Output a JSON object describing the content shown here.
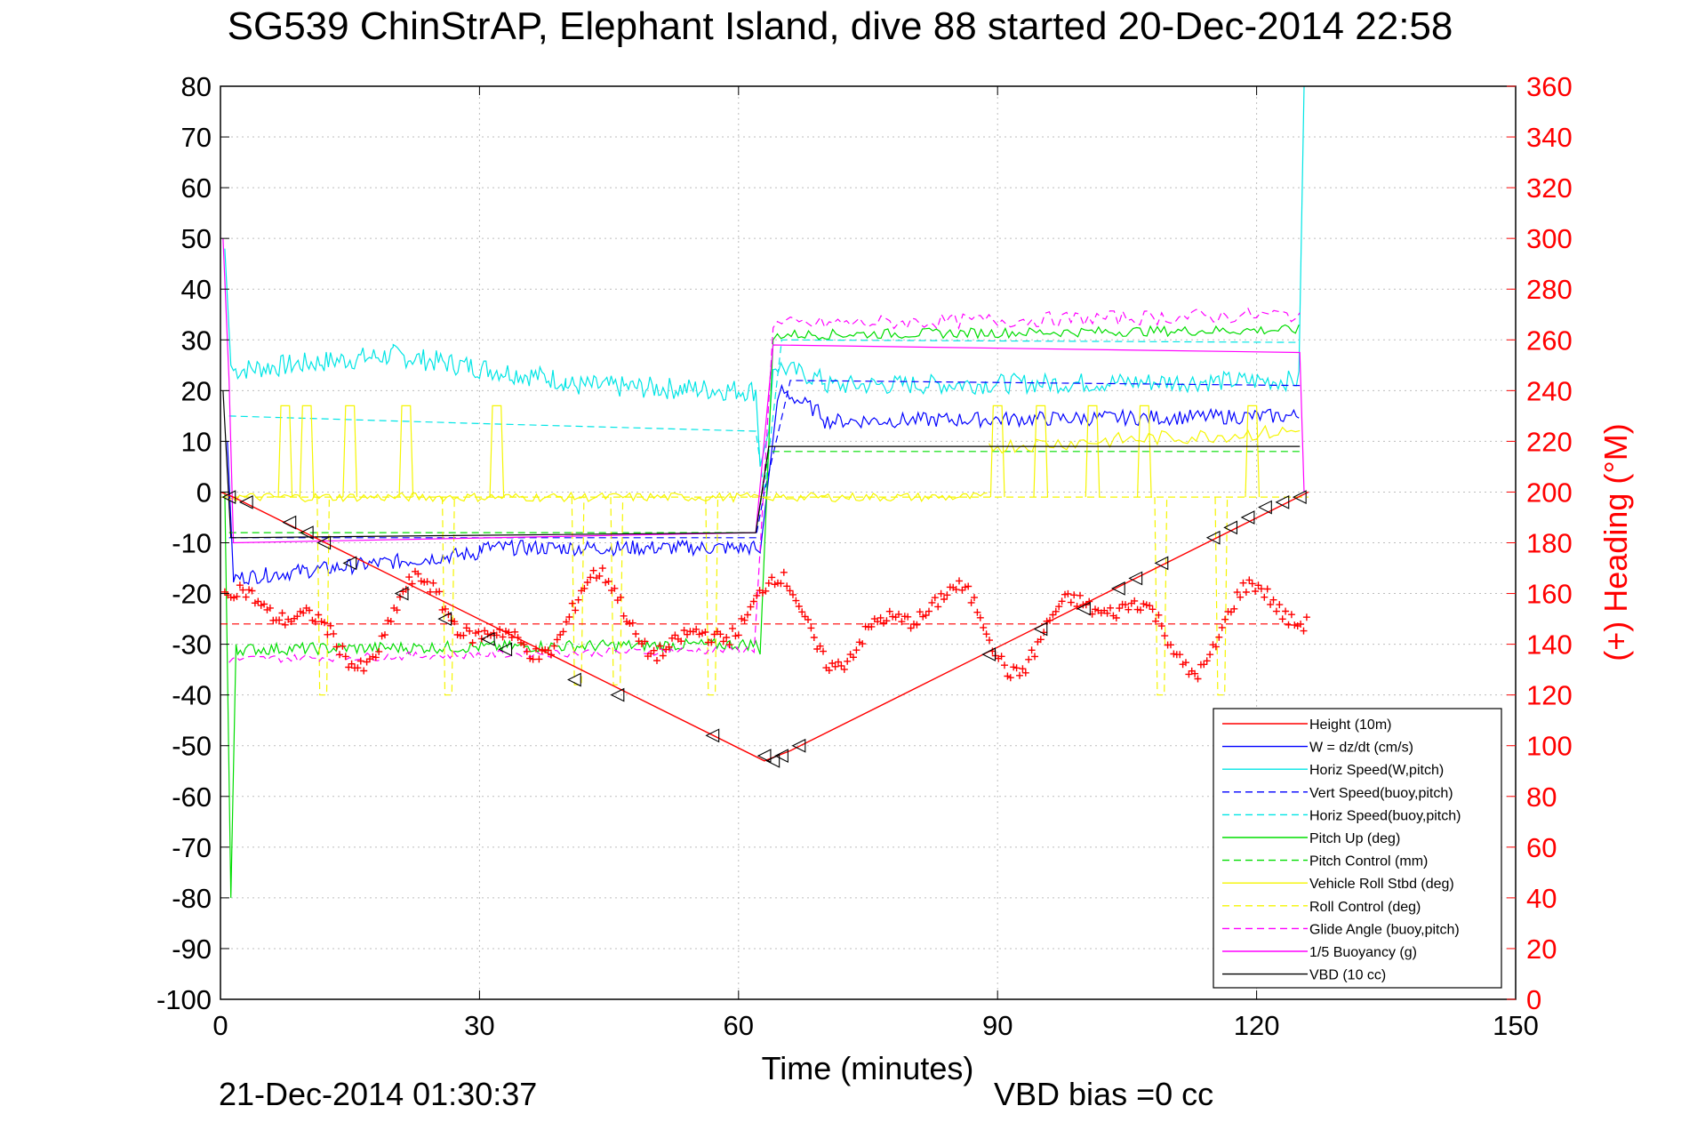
{
  "chart_data": {
    "type": "line",
    "title": "SG539 ChinStrAP, Elephant Island, dive 88 started 20-Dec-2014 22:58",
    "xlabel": "Time (minutes)",
    "ylabel_right": "(+) Heading (°M)",
    "footer_left": "21-Dec-2014 01:30:37",
    "footer_right": "VBD bias =0 cc",
    "xlim": [
      0,
      150
    ],
    "ylim_left": [
      -100,
      80
    ],
    "ylim_right": [
      0,
      360
    ],
    "x_ticks": [
      0,
      30,
      60,
      90,
      120,
      150
    ],
    "y_ticks_left": [
      80,
      70,
      60,
      50,
      40,
      30,
      20,
      10,
      0,
      -10,
      -20,
      -30,
      -40,
      -50,
      -60,
      -70,
      -80,
      -90,
      -100
    ],
    "y_ticks_right": [
      360,
      340,
      320,
      300,
      280,
      260,
      240,
      220,
      200,
      180,
      160,
      140,
      120,
      100,
      80,
      60,
      40,
      20,
      0
    ],
    "grid": true,
    "legend_position": "bottom-right",
    "legend": [
      {
        "label": "Height (10m)",
        "color": "#ff0000",
        "style": "solid"
      },
      {
        "label": "W = dz/dt (cm/s)",
        "color": "#0000ff",
        "style": "solid"
      },
      {
        "label": "Horiz Speed(W,pitch)",
        "color": "#00e5e5",
        "style": "solid"
      },
      {
        "label": "Vert Speed(buoy,pitch)",
        "color": "#0000ff",
        "style": "dashed"
      },
      {
        "label": "Horiz Speed(buoy,pitch)",
        "color": "#00e5e5",
        "style": "dashed"
      },
      {
        "label": "Pitch Up (deg)",
        "color": "#00dd00",
        "style": "solid"
      },
      {
        "label": "Pitch Control (mm)",
        "color": "#00dd00",
        "style": "dashed"
      },
      {
        "label": "Vehicle Roll Stbd (deg)",
        "color": "#f5f500",
        "style": "solid"
      },
      {
        "label": "Roll Control (deg)",
        "color": "#f5f500",
        "style": "dashed"
      },
      {
        "label": "Glide Angle (buoy,pitch)",
        "color": "#ff00ff",
        "style": "dashed"
      },
      {
        "label": "1/5 Buoyancy (g)",
        "color": "#ff00ff",
        "style": "solid"
      },
      {
        "label": "VBD (10 cc)",
        "color": "#000000",
        "style": "solid"
      }
    ],
    "series": [
      {
        "name": "Height (10m)",
        "axis": "left",
        "color": "#ff0000",
        "x": [
          0,
          1.5,
          63,
          66,
          126
        ],
        "y": [
          0,
          -1,
          -53,
          -51,
          0
        ]
      },
      {
        "name": "Roll Control (deg)",
        "axis": "left",
        "color": "#f5f500",
        "style": "dashed",
        "x": [
          0,
          126
        ],
        "y": [
          -1,
          -1
        ]
      }
    ],
    "heading": {
      "name": "(+) Heading (°M)",
      "axis": "right",
      "color": "#ff0000",
      "reference": 148
    },
    "height_markers": {
      "x": [
        1,
        3,
        8,
        10,
        12,
        15,
        21,
        26,
        31,
        33,
        41,
        46,
        57,
        63,
        64,
        65,
        67,
        89,
        95,
        100,
        104,
        106,
        109,
        115,
        117,
        119,
        121,
        123,
        125
      ],
      "y": [
        -1,
        -2,
        -6,
        -8,
        -10,
        -14,
        -20,
        -25,
        -29,
        -31,
        -37,
        -40,
        -48,
        -52,
        -53,
        -52,
        -50,
        -32,
        -27,
        -23,
        -19,
        -17,
        -14,
        -9,
        -7,
        -5,
        -3,
        -2,
        -1
      ]
    }
  }
}
